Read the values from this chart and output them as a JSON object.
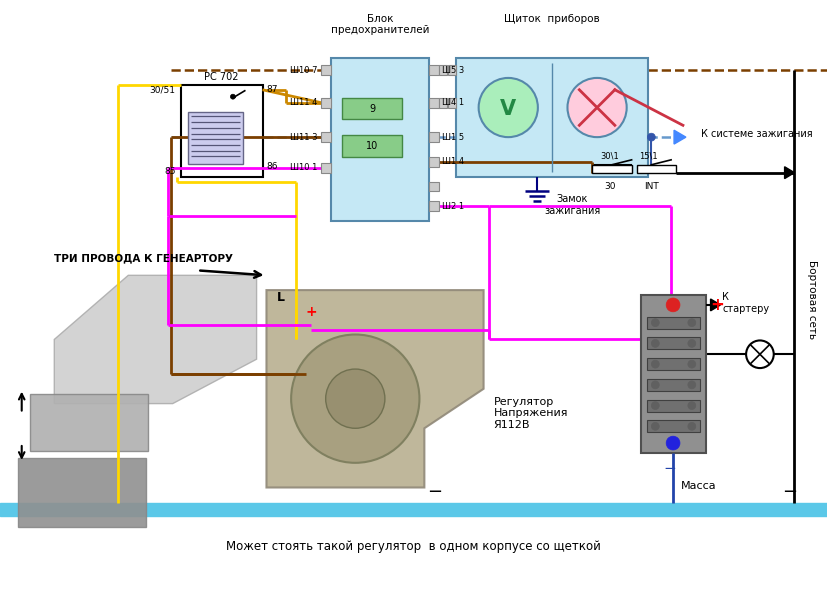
{
  "bg_color": "#ffffff",
  "blok_text": "Блок\nпредохранителей",
  "shchitok_text": "Щиток  приборов",
  "zamok_text": "Замок\nзажигания",
  "tri_provoda_text": "ТРИ ПРОВОДА К ГЕНЕАРТОРУ",
  "regulator_text": "Регулятор\nНапряжения\nЯ112В",
  "k_sisteme_text": "К системе зажигания",
  "k_starteru_text": "К\nстартеру",
  "bortovaya_text": "Бортовая сеть",
  "massa_text": "Масса",
  "mozhet_text": "Может стоять такой регулятор  в одном корпусе со щеткой",
  "rc_text": "РС 702",
  "int_text": "INT",
  "color_brown": "#7B3F00",
  "color_yellow": "#FFD700",
  "color_magenta": "#FF00FF",
  "color_orange": "#FFA500",
  "color_blue_dashed": "#6699CC",
  "color_blue_arrow": "#4488FF",
  "color_black": "#000000",
  "color_light_blue_box": "#C5E8F5",
  "color_box_border": "#5588AA",
  "color_green_fuse": "#88CC88",
  "color_gray_connector": "#BBBBBB"
}
